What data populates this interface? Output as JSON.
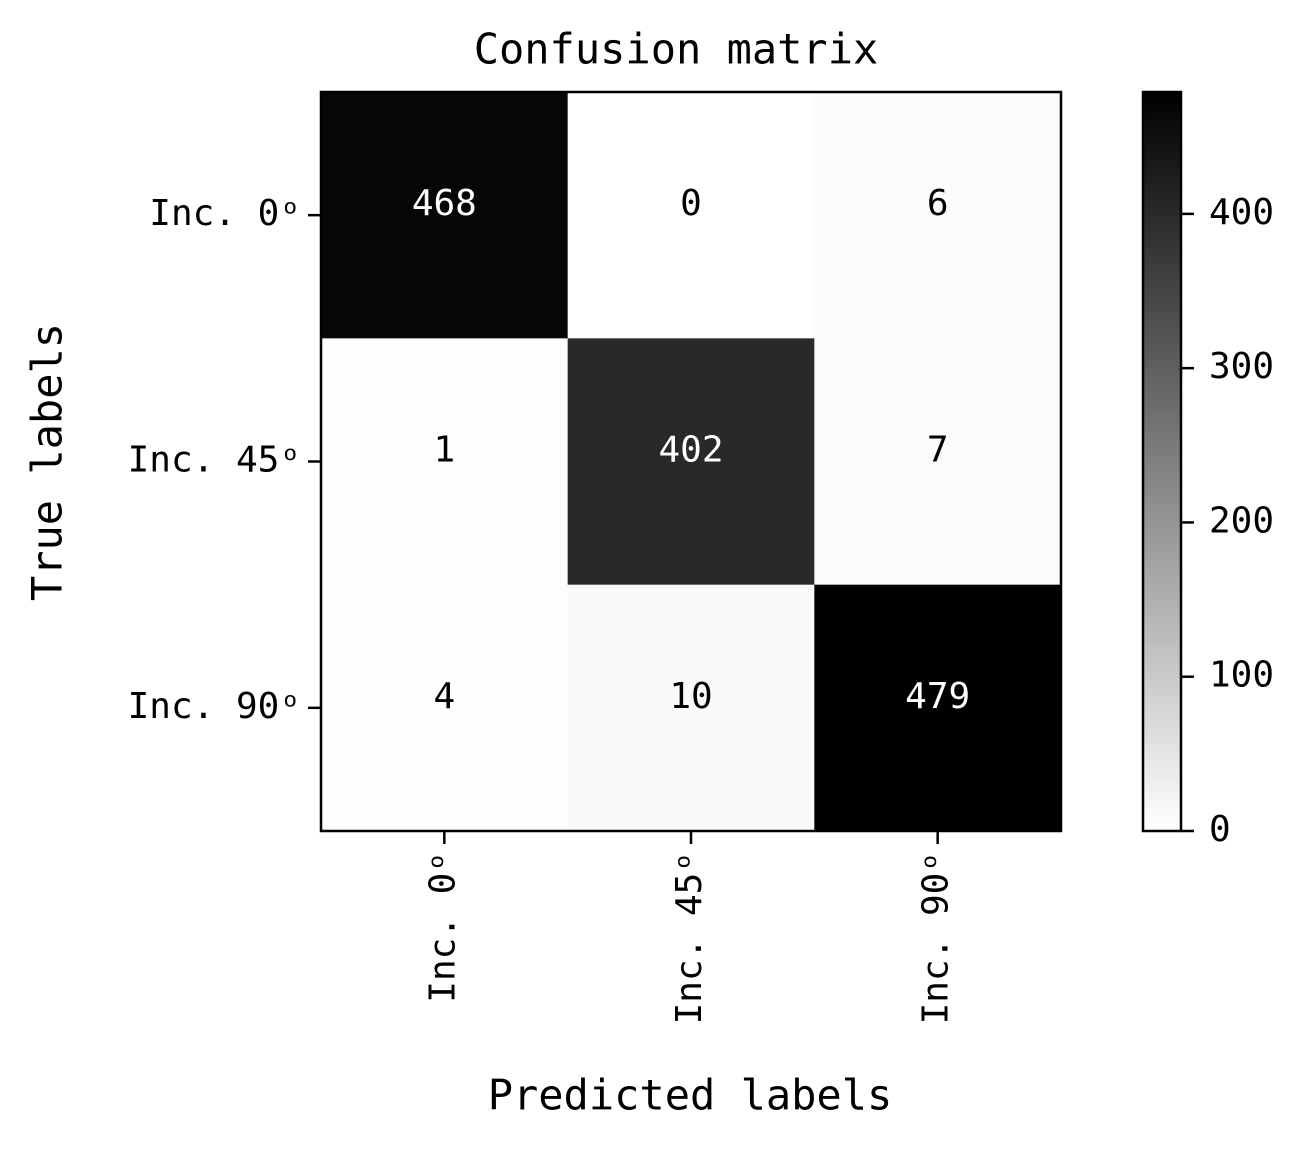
{
  "chart_data": {
    "type": "heatmap",
    "title": "Confusion matrix",
    "x_label": "Predicted labels",
    "y_label": "True labels",
    "x_categories": [
      "Inc. 0ᵒ",
      "Inc. 45ᵒ",
      "Inc. 90ᵒ"
    ],
    "y_categories": [
      "Inc. 0ᵒ",
      "Inc. 45ᵒ",
      "Inc. 90ᵒ"
    ],
    "values": [
      [
        468,
        0,
        6
      ],
      [
        1,
        402,
        7
      ],
      [
        4,
        10,
        479
      ]
    ],
    "colormap": [
      "#ffffff",
      "#000000"
    ],
    "clim": [
      0,
      479
    ],
    "cticks": [
      0,
      100,
      200,
      300,
      400
    ]
  }
}
